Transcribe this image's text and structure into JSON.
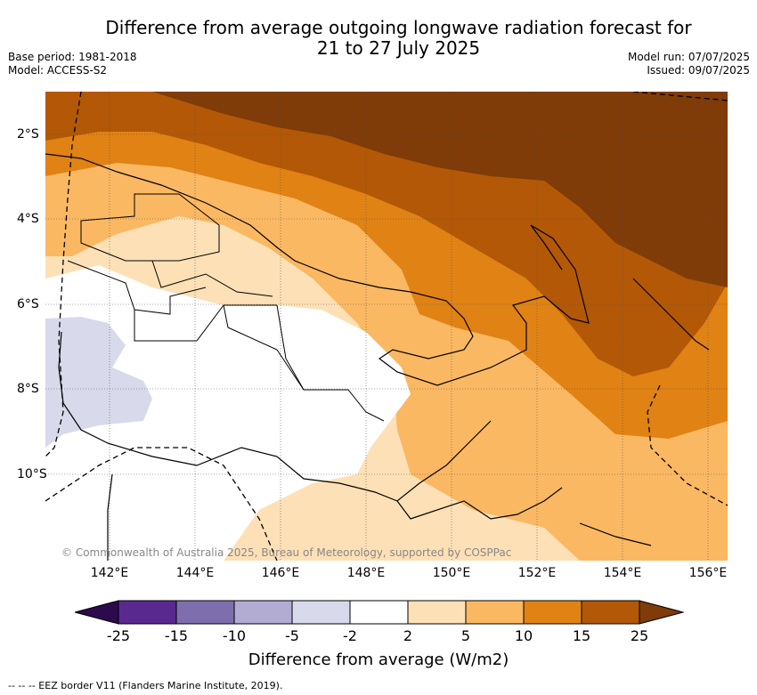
{
  "title_line1": "Difference from average outgoing longwave radiation forecast for",
  "title_line2": "21 to 27 July 2025",
  "meta_left": [
    "Base period: 1981-2018",
    "Model: ACCESS-S2"
  ],
  "meta_right": [
    "Model run: 07/07/2025",
    "Issued: 09/07/2025"
  ],
  "lon_labels": [
    "142°E",
    "144°E",
    "146°E",
    "148°E",
    "150°E",
    "152°E",
    "154°E",
    "156°E"
  ],
  "lat_labels": [
    "2°S",
    "4°S",
    "6°S",
    "8°S",
    "10°S"
  ],
  "copyright": "© Commonwealth of Australia 2025, Bureau of Meteorology, supported by COSPPac",
  "colorbar": {
    "ticks": [
      "-25",
      "-15",
      "-10",
      "-5",
      "-2",
      "2",
      "5",
      "10",
      "15",
      "25"
    ],
    "colors": [
      "#2d0a4e",
      "#5a2990",
      "#7f6eae",
      "#b2abd2",
      "#d8daeb",
      "#ffffff",
      "#fee0b6",
      "#fbb862",
      "#e08214",
      "#b35806",
      "#7f3b08"
    ],
    "title": "Difference from average (W/m2)"
  },
  "footer": "--  --  -- EEZ border V11 (Flanders Marine Institute, 2019)."
}
